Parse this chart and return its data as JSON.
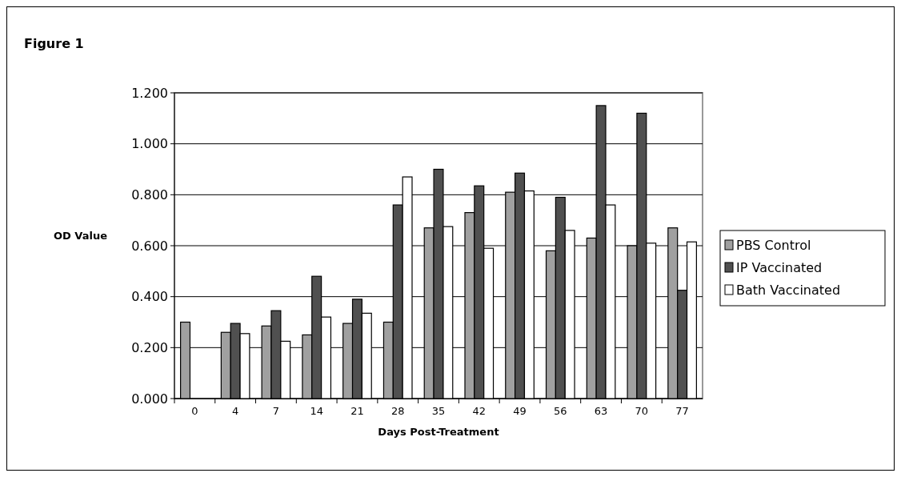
{
  "chart_data": {
    "type": "bar",
    "title": "Figure 1",
    "xlabel": "Days Post-Treatment",
    "ylabel": "OD Value",
    "categories": [
      "0",
      "4",
      "7",
      "14",
      "21",
      "28",
      "35",
      "42",
      "49",
      "56",
      "63",
      "70",
      "77"
    ],
    "series": [
      {
        "name": "PBS Control",
        "color": "#a0a0a0",
        "values": [
          0.3,
          0.26,
          0.285,
          0.25,
          0.295,
          0.3,
          0.67,
          0.73,
          0.81,
          0.58,
          0.63,
          0.6,
          0.67
        ]
      },
      {
        "name": "IP Vaccinated",
        "color": "#505050",
        "values": [
          null,
          0.295,
          0.345,
          0.48,
          0.39,
          0.76,
          0.9,
          0.835,
          0.885,
          0.79,
          1.15,
          1.12,
          0.425
        ]
      },
      {
        "name": "Bath Vaccinated",
        "color": "#ffffff",
        "values": [
          null,
          0.255,
          0.225,
          0.32,
          0.335,
          0.87,
          0.675,
          0.59,
          0.815,
          0.66,
          0.76,
          0.61,
          0.615
        ]
      }
    ],
    "ylim": [
      0,
      1.2
    ],
    "yticks": [
      {
        "value": 0,
        "label": "0.000"
      },
      {
        "value": 0.2,
        "label": "0.200"
      },
      {
        "value": 0.4,
        "label": "0.400"
      },
      {
        "value": 0.6,
        "label": "0.600"
      },
      {
        "value": 0.8,
        "label": "0.800"
      },
      {
        "value": 1.0,
        "label": "1.000"
      },
      {
        "value": 1.2,
        "label": "1.200"
      }
    ],
    "grid": "y",
    "legend": "right"
  }
}
